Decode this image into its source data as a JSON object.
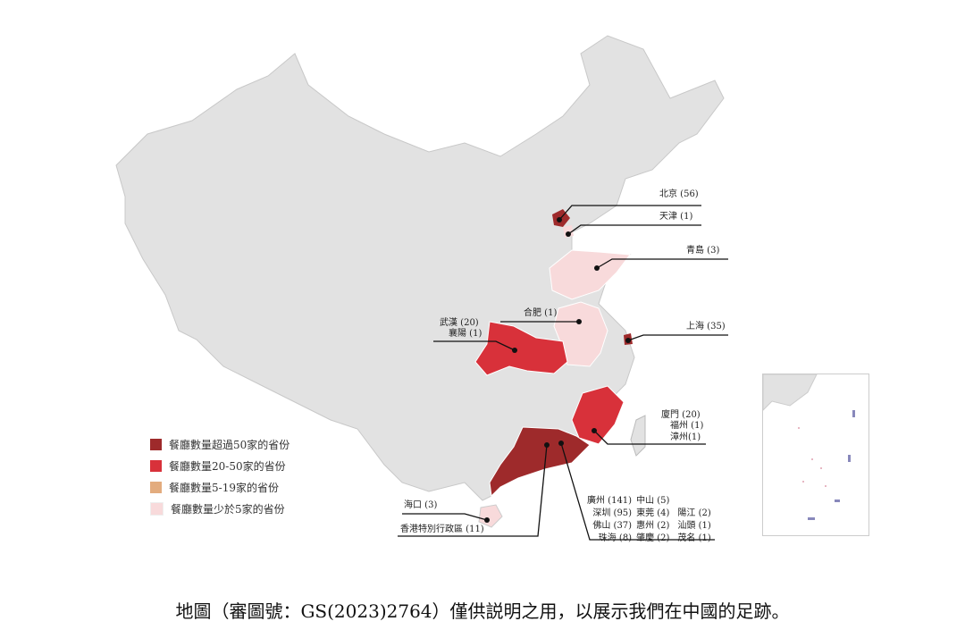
{
  "colors": {
    "over50": "#9e2a2b",
    "range20_50": "#d8313a",
    "range5_19": "#e3ac7e",
    "under5": "#f8dadb",
    "base": "#e2e2e2"
  },
  "legend": [
    {
      "label": "餐廳數量超過50家的省份",
      "color": "#9e2a2b"
    },
    {
      "label": "餐廳數量20-50家的省份",
      "color": "#d8313a"
    },
    {
      "label": "餐廳數量5-19家的省份",
      "color": "#e3ac7e"
    },
    {
      "label": "餐廳數量少於5家的省份",
      "color": "#f8dadb"
    }
  ],
  "cities": {
    "beijing": "北京 (56)",
    "tianjin": "天津 (1)",
    "qingdao": "青島 (3)",
    "hefei": "合肥 (1)",
    "wuhan": "武漢 (20)",
    "xiangyang": "襄陽 (1)",
    "shanghai": "上海 (35)",
    "xiamen": "廈門 (20)",
    "fuzhou": "福州 (1)",
    "zhangzhou": "漳州(1)",
    "haikou": "海口 (3)",
    "hongkong": "香港特別行政區 (11)",
    "guangdong": [
      [
        "廣州 (141)",
        "中山 (5)",
        ""
      ],
      [
        "深圳 (95)",
        "東莞 (4)",
        "陽江 (2)"
      ],
      [
        "佛山 (37)",
        "惠州 (2)",
        "汕頭 (1)"
      ],
      [
        "珠海 (8)",
        "肇慶 (2)",
        "茂名 (1)"
      ]
    ]
  },
  "caption": "地圖（審圖號：GS(2023)2764）僅供説明之用，以展示我們在中國的足跡。"
}
